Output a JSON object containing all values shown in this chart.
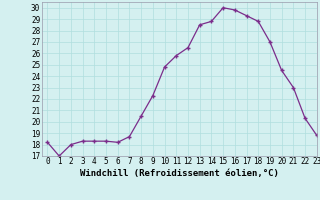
{
  "x": [
    0,
    1,
    2,
    3,
    4,
    5,
    6,
    7,
    8,
    9,
    10,
    11,
    12,
    13,
    14,
    15,
    16,
    17,
    18,
    19,
    20,
    21,
    22,
    23
  ],
  "y": [
    18.2,
    17.0,
    18.0,
    18.3,
    18.3,
    18.3,
    18.2,
    18.7,
    20.5,
    22.3,
    24.8,
    25.8,
    26.5,
    28.5,
    28.8,
    30.0,
    29.8,
    29.3,
    28.8,
    27.0,
    24.5,
    23.0,
    20.3,
    18.8
  ],
  "xlabel": "Windchill (Refroidissement éolien,°C)",
  "ylim": [
    17,
    30.5
  ],
  "xlim": [
    -0.5,
    23
  ],
  "yticks": [
    17,
    18,
    19,
    20,
    21,
    22,
    23,
    24,
    25,
    26,
    27,
    28,
    29,
    30
  ],
  "xticks": [
    0,
    1,
    2,
    3,
    4,
    5,
    6,
    7,
    8,
    9,
    10,
    11,
    12,
    13,
    14,
    15,
    16,
    17,
    18,
    19,
    20,
    21,
    22,
    23
  ],
  "line_color": "#7b2d8b",
  "marker": "+",
  "bg_color": "#d4f0f0",
  "grid_color": "#b0dede",
  "tick_label_fontsize": 5.5,
  "xlabel_fontsize": 6.5
}
